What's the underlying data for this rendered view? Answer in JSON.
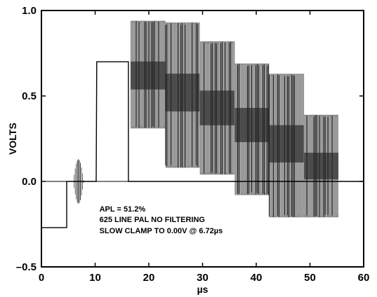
{
  "chart_data": {
    "type": "line",
    "title": "",
    "xlabel": "µs",
    "ylabel": "VOLTS",
    "xlim": [
      0,
      60
    ],
    "ylim": [
      -0.5,
      1.0
    ],
    "xticks": [
      0,
      10,
      20,
      30,
      40,
      50,
      60
    ],
    "yticks": [
      -0.5,
      0.0,
      0.5,
      1.0
    ],
    "xtick_labels": [
      "0",
      "10",
      "20",
      "30",
      "40",
      "50",
      "60"
    ],
    "ytick_labels": [
      "–0.5",
      "0.0",
      "0.5",
      "1.0"
    ],
    "grid": false,
    "reference_lines": [
      {
        "axis": "y",
        "value": 0.0
      }
    ],
    "annotations": [
      "APL = 51.2%",
      "625 LINE PAL NO FILTERING",
      "SLOW CLAMP TO 0.00V @ 6.72µs"
    ],
    "series": [
      {
        "x": [
          0,
          4.7,
          4.7,
          5.6,
          5.6,
          10.2,
          10.3,
          16.2,
          16.2,
          59.5,
          60
        ],
        "y": [
          -0.27,
          -0.27,
          0.0,
          0.0,
          0.0,
          0.0,
          0.7,
          0.7,
          0.0,
          0.0,
          0.0
        ]
      }
    ],
    "burst": {
      "x_start": 5.9,
      "x_end": 7.9,
      "center": 0.0,
      "amplitude": 0.13
    },
    "chroma_steps": [
      {
        "x_start": 16.6,
        "x_end": 23.1,
        "luma": 0.62,
        "max": 0.94,
        "min": 0.31
      },
      {
        "x_start": 23.1,
        "x_end": 29.5,
        "luma": 0.52,
        "max": 0.93,
        "min": 0.08
      },
      {
        "x_start": 29.5,
        "x_end": 36.0,
        "luma": 0.43,
        "max": 0.82,
        "min": 0.04
      },
      {
        "x_start": 36.0,
        "x_end": 42.4,
        "luma": 0.33,
        "max": 0.69,
        "min": -0.08
      },
      {
        "x_start": 42.4,
        "x_end": 48.9,
        "luma": 0.22,
        "max": 0.63,
        "min": -0.21
      },
      {
        "x_start": 48.9,
        "x_end": 55.3,
        "luma": 0.09,
        "max": 0.39,
        "min": -0.21
      }
    ],
    "colors": {
      "trace": "#000000",
      "chroma": "#8c8c8c",
      "axes": "#000000"
    }
  }
}
